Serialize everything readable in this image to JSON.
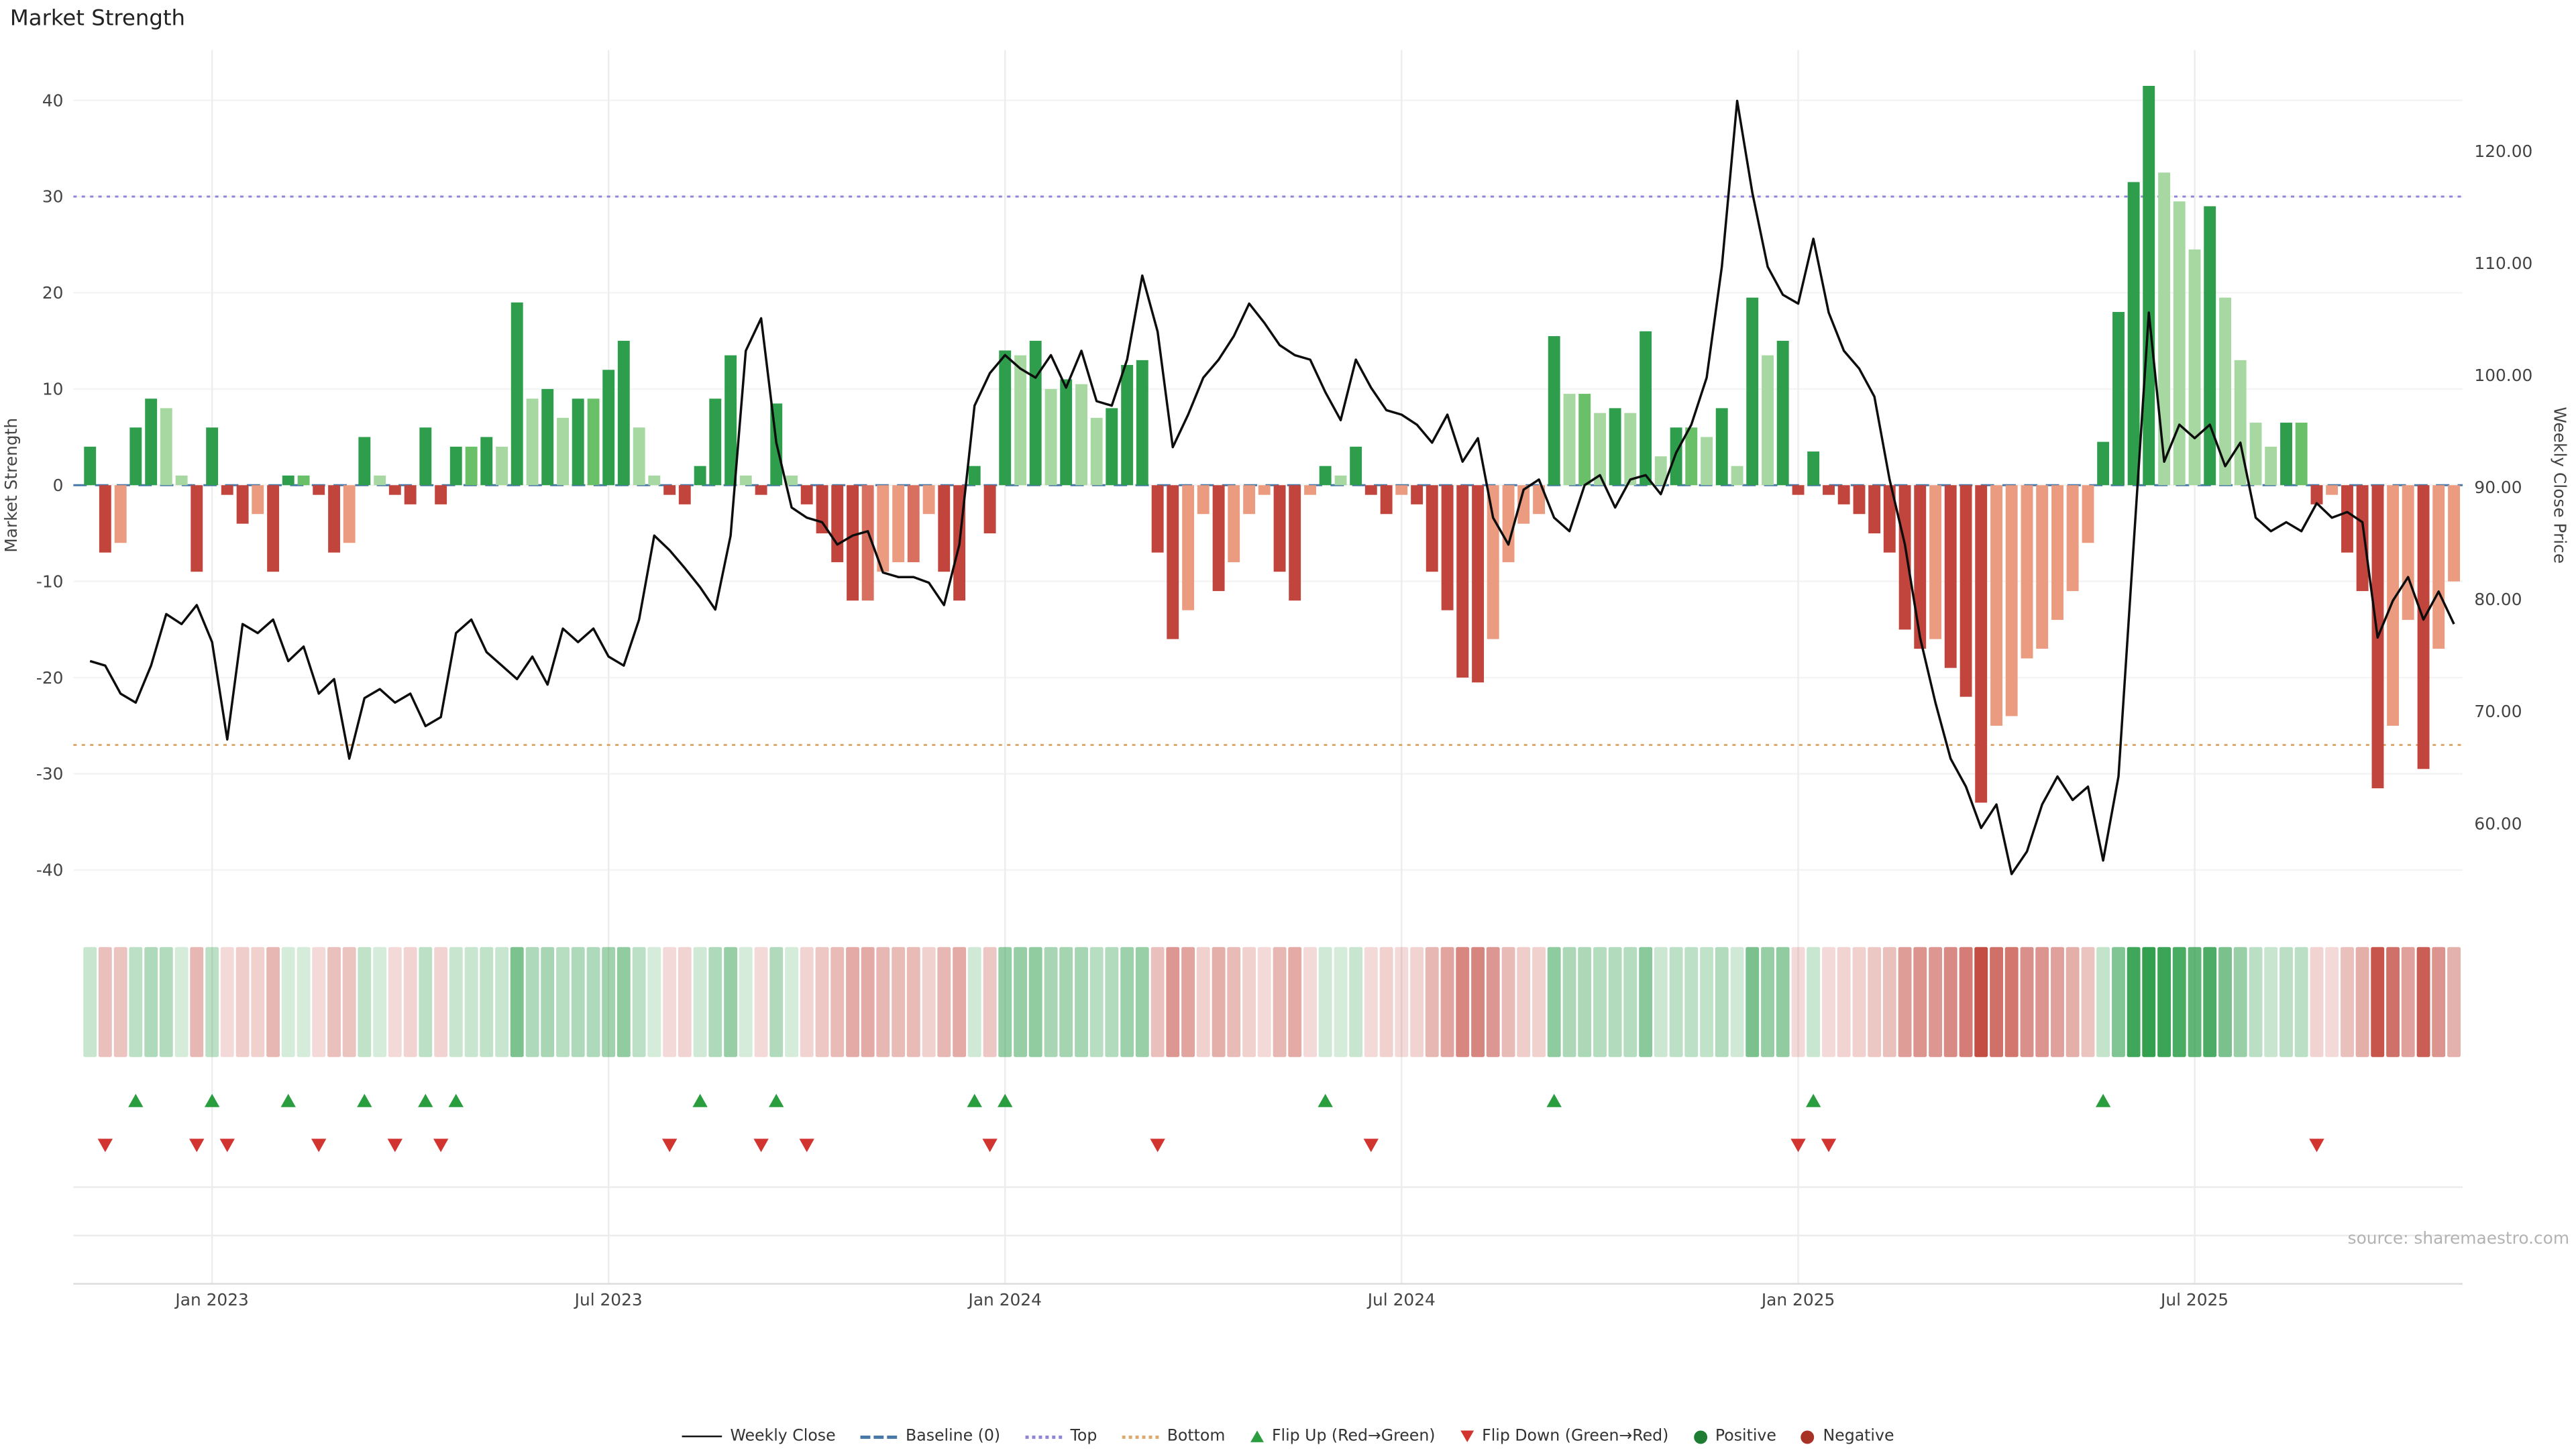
{
  "chart_data": {
    "type": "combo-bar-line",
    "title": "Market Strength",
    "source": "source: sharemaestro.com",
    "left_axis": {
      "label": "Market Strength",
      "ticks": [
        -40,
        -30,
        -20,
        -10,
        0,
        10,
        20,
        30,
        40
      ]
    },
    "right_axis": {
      "label": "Weekly Close Price",
      "ticks": [
        60,
        70,
        80,
        90,
        100,
        110,
        120
      ]
    },
    "x_axis": {
      "tick_labels": [
        "Jan 2023",
        "Jul 2023",
        "Jan 2024",
        "Jul 2024",
        "Jan 2025",
        "Jul 2025"
      ],
      "tick_weeks": [
        8,
        34,
        60,
        86,
        112,
        138
      ]
    },
    "reference_lines": {
      "baseline": 0,
      "top": 30,
      "bottom": -27
    },
    "series": {
      "market_strength": [
        4,
        -7,
        -6,
        6,
        9,
        8,
        1,
        -9,
        6,
        -1,
        -4,
        -3,
        -9,
        1,
        1,
        -1,
        -7,
        -6,
        5,
        1,
        -1,
        -2,
        6,
        -2,
        4,
        4,
        5,
        4,
        19,
        9,
        10,
        7,
        9,
        9,
        12,
        15,
        6,
        1,
        -1,
        -2,
        2,
        9,
        13.5,
        1,
        -1,
        8.5,
        1,
        -2,
        -5,
        -8,
        -12,
        -12,
        -9,
        -8,
        -8,
        -3,
        -9,
        -12,
        2,
        -5,
        14,
        13.5,
        15,
        10,
        11,
        10.5,
        7,
        8,
        12.5,
        13,
        -7,
        -16,
        -13,
        -3,
        -11,
        -8,
        -3,
        -1,
        -9,
        -12,
        -1,
        2,
        1,
        4,
        -1,
        -3,
        -1,
        -2,
        -9,
        -13,
        -20,
        -20.5,
        -16,
        -8,
        -4,
        -3,
        15.5,
        9.5,
        9.5,
        7.5,
        8,
        7.5,
        16,
        3,
        6,
        6,
        5,
        8,
        2,
        19.5,
        13.5,
        15,
        -1,
        3.5,
        -1,
        -2,
        -3,
        -5,
        -7,
        -15,
        -17,
        -16,
        -19,
        -22,
        -33,
        -25,
        -24,
        -18,
        -17,
        -14,
        -11,
        -6,
        4.5,
        18,
        31.5,
        41.5,
        32.5,
        29.5,
        24.5,
        29,
        19.5,
        13,
        6.5,
        4,
        6.5,
        6.5,
        -2,
        -1,
        -7,
        -11,
        -31.5,
        -25,
        -14,
        -29.5,
        -17,
        -10
      ],
      "weekly_close": [
        74.5,
        74.1,
        71.6,
        70.8,
        74.1,
        78.7,
        77.8,
        79.5,
        76.2,
        67.5,
        77.8,
        77.0,
        78.2,
        74.5,
        75.8,
        71.6,
        72.9,
        65.8,
        71.2,
        72.0,
        70.8,
        71.6,
        68.7,
        69.5,
        77.0,
        78.2,
        75.3,
        74.1,
        72.9,
        74.9,
        72.4,
        77.4,
        76.2,
        77.4,
        74.9,
        74.1,
        78.2,
        85.7,
        84.4,
        82.8,
        81.1,
        79.1,
        85.7,
        102.2,
        105.1,
        94.0,
        88.2,
        87.3,
        86.9,
        84.9,
        85.7,
        86.1,
        82.4,
        82.0,
        82.0,
        81.5,
        79.5,
        84.9,
        97.3,
        100.2,
        101.8,
        100.6,
        99.8,
        101.8,
        98.9,
        102.2,
        97.7,
        97.3,
        101.4,
        108.9,
        103.9,
        93.6,
        96.5,
        99.8,
        101.4,
        103.5,
        106.4,
        104.7,
        102.7,
        101.8,
        101.4,
        98.5,
        96.0,
        101.4,
        98.9,
        96.9,
        96.5,
        95.6,
        94.0,
        96.5,
        92.3,
        94.4,
        87.3,
        84.9,
        89.8,
        90.7,
        87.3,
        86.1,
        90.2,
        91.1,
        88.2,
        90.7,
        91.1,
        89.4,
        93.1,
        95.6,
        99.8,
        109.7,
        124.5,
        116.3,
        109.7,
        107.2,
        106.4,
        112.2,
        105.6,
        102.2,
        100.6,
        98.1,
        90.7,
        84.9,
        76.6,
        70.8,
        65.8,
        63.3,
        59.6,
        61.7,
        55.5,
        57.5,
        61.7,
        64.2,
        62.1,
        63.3,
        56.7,
        64.2,
        84.9,
        105.6,
        92.3,
        95.6,
        94.4,
        95.6,
        91.9,
        94.0,
        87.3,
        86.1,
        86.9,
        86.1,
        88.6,
        87.3,
        87.8,
        86.9,
        76.6,
        79.9,
        82.0,
        78.2,
        80.7,
        77.8
      ]
    },
    "flip_up_weeks": [
      3,
      8,
      13,
      18,
      22,
      24,
      40,
      45,
      58,
      60,
      81,
      96,
      113,
      132
    ],
    "flip_down_weeks": [
      1,
      7,
      9,
      15,
      20,
      23,
      38,
      44,
      47,
      59,
      70,
      84,
      112,
      114,
      146
    ],
    "legend": [
      {
        "label": "Weekly Close",
        "swatch": "line",
        "color": "#111111"
      },
      {
        "label": "Baseline (0)",
        "swatch": "dashed",
        "color": "#4878a8"
      },
      {
        "label": "Top",
        "swatch": "dotted",
        "color": "#8f86d8"
      },
      {
        "label": "Bottom",
        "swatch": "dotted",
        "color": "#ddaa6e"
      },
      {
        "label": "Flip Up (Red→Green)",
        "swatch": "tri-up",
        "color": "#2a9d3f"
      },
      {
        "label": "Flip Down (Green→Red)",
        "swatch": "tri-down",
        "color": "#d23430"
      },
      {
        "label": "Positive",
        "swatch": "dot",
        "color": "#1e7d32"
      },
      {
        "label": "Negative",
        "swatch": "dot",
        "color": "#a93226"
      }
    ],
    "colors": {
      "bar_pos_rising": "#2f9e4c",
      "bar_pos_falling": "#a8d8a2",
      "bar_pos_mid": "#6abf69",
      "bar_neg_falling": "#c2453d",
      "bar_neg_rising": "#eb9c80",
      "bar_neg_mid": "#d96f5f",
      "line": "#0d0d0d",
      "baseline": "#4878a8",
      "top_line": "#8f86d8",
      "bottom_line": "#ddaa6e",
      "flip_up": "#2a9d3f",
      "flip_down": "#d23430",
      "heat_pos": "47,158,76",
      "heat_neg": "194,70,60"
    }
  }
}
